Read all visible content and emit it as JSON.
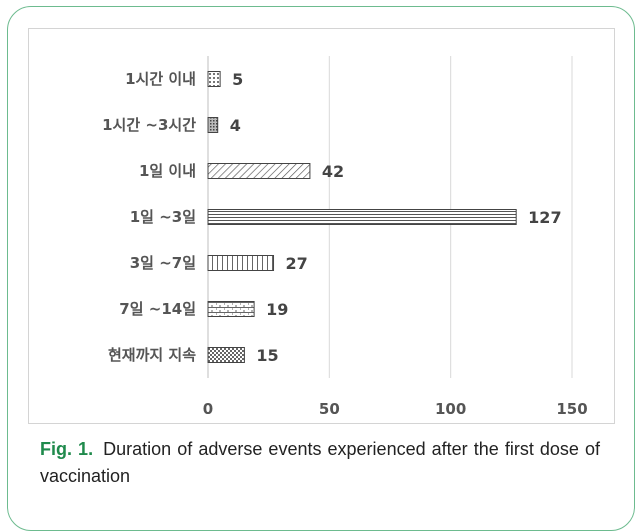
{
  "caption": {
    "label": "Fig. 1.",
    "text": "Duration of adverse events experienced after the first dose of vaccination"
  },
  "chart_data": {
    "type": "bar",
    "orientation": "horizontal",
    "categories": [
      "1시간 이내",
      "1시간 ~3시간",
      "1일 이내",
      "1일 ~3일",
      "3일 ~7일",
      "7일 ~14일",
      "현재까지 지속"
    ],
    "values": [
      5,
      4,
      42,
      127,
      27,
      19,
      15
    ],
    "xlim": [
      0,
      150
    ],
    "xticks": [
      0,
      50,
      100,
      150
    ],
    "grid": true,
    "title": "",
    "xlabel": "",
    "ylabel": ""
  }
}
